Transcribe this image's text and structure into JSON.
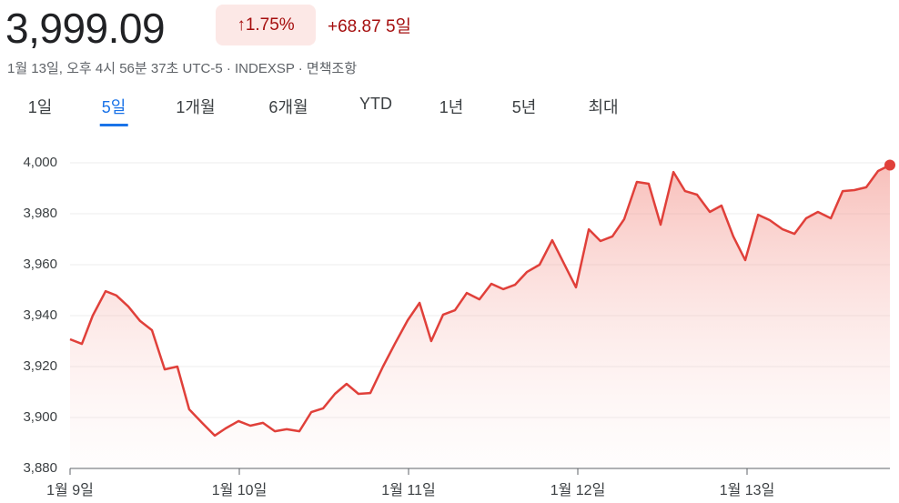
{
  "header": {
    "price": "3,999.09",
    "change_percent": "1.75%",
    "change": "+68.87",
    "period": "5일",
    "subline": "1월 13일, 오후 4시 56분 37초 UTC-5 · INDEXSP · 면책조항"
  },
  "tabs": {
    "items": [
      "1일",
      "5일",
      "1개월",
      "6개월",
      "YTD",
      "1년",
      "5년",
      "최대"
    ],
    "selected": 1
  },
  "chart_data": {
    "type": "line",
    "x": [
      0,
      0.07,
      0.134,
      0.21,
      0.274,
      0.344,
      0.414,
      0.484,
      0.559,
      0.634,
      0.704,
      0.78,
      0.855,
      0.919,
      0.995,
      1.065,
      1.14,
      1.21,
      1.28,
      1.355,
      1.425,
      1.495,
      1.565,
      1.634,
      1.704,
      1.774,
      1.849,
      1.919,
      1.995,
      2.065,
      2.134,
      2.204,
      2.274,
      2.344,
      2.419,
      2.489,
      2.559,
      2.629,
      2.699,
      2.774,
      2.849,
      2.919,
      2.989,
      3.065,
      3.134,
      3.204,
      3.274,
      3.349,
      3.419,
      3.489,
      3.565,
      3.634,
      3.704,
      3.78,
      3.849,
      3.919,
      3.989,
      4.065,
      4.134,
      4.21,
      4.28,
      4.349,
      4.419,
      4.495,
      4.565,
      4.634,
      4.704,
      4.774,
      4.844
    ],
    "series": [
      {
        "color": "#e0403a",
        "values": [
          3930.7,
          3928.9,
          3940,
          3949.6,
          3947.9,
          3943.6,
          3937.9,
          3934.3,
          3918.9,
          3920,
          3903.2,
          3897.9,
          3892.9,
          3895.7,
          3898.6,
          3896.8,
          3897.9,
          3894.6,
          3895.4,
          3894.6,
          3902.1,
          3903.6,
          3909.3,
          3913.2,
          3909.3,
          3909.6,
          3920,
          3928.9,
          3938.2,
          3945,
          3930,
          3940.4,
          3942.1,
          3948.9,
          3946.4,
          3952.5,
          3950.4,
          3952.1,
          3957.1,
          3960,
          3969.6,
          3960.4,
          3951.1,
          3973.9,
          3969.3,
          3971.1,
          3977.9,
          3992.5,
          3991.8,
          3975.7,
          3996.4,
          3988.9,
          3987.5,
          3980.7,
          3983.2,
          3971.1,
          3961.8,
          3979.6,
          3977.5,
          3973.9,
          3972.1,
          3978.2,
          3980.7,
          3978.2,
          3988.9,
          3989.3,
          3990.4,
          3996.8,
          3999.09
        ]
      }
    ],
    "xlim": [
      0,
      4.844
    ],
    "xticks": [
      {
        "value": 0,
        "label": "1월 9일"
      },
      {
        "value": 1,
        "label": "1월 10일"
      },
      {
        "value": 2,
        "label": "1월 11일"
      },
      {
        "value": 3,
        "label": "1월 12일"
      },
      {
        "value": 4,
        "label": "1월 13일"
      }
    ],
    "ylim": [
      3880,
      4000
    ],
    "yticks": [
      {
        "value": 3880,
        "label": "3,880"
      },
      {
        "value": 3900,
        "label": "3,900"
      },
      {
        "value": 3920,
        "label": "3,920"
      },
      {
        "value": 3940,
        "label": "3,940"
      },
      {
        "value": 3960,
        "label": "3,960"
      },
      {
        "value": 3980,
        "label": "3,980"
      },
      {
        "value": 4000,
        "label": "4,000"
      }
    ],
    "grid": true
  }
}
